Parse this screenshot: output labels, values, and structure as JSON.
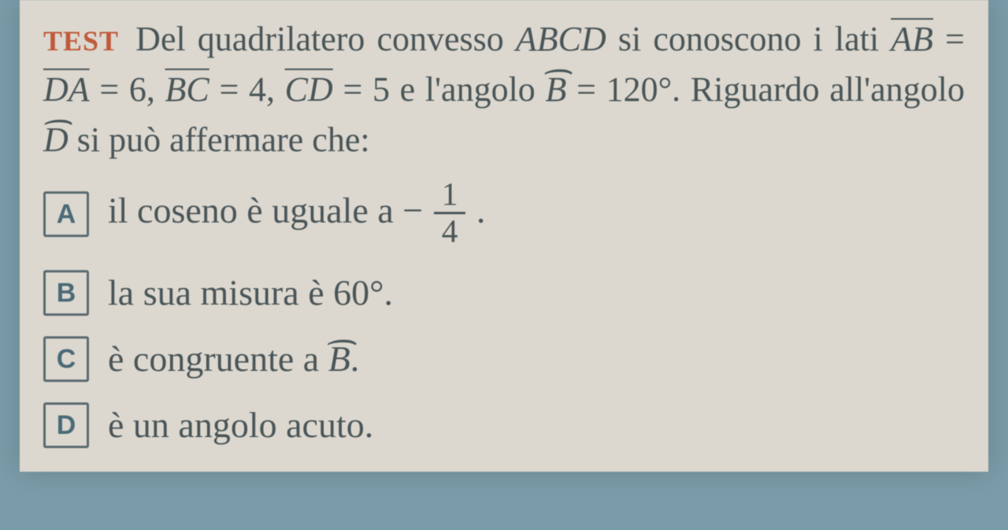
{
  "colors": {
    "page_bg": "#dcd8cf",
    "outer_bg": "#7a9ba8",
    "text": "#4a5558",
    "test_label": "#c05a3a",
    "box_border": "#5a6a70",
    "box_letter": "#4a6a78"
  },
  "question": {
    "label": "TEST",
    "pre": "Del quadrilatero convesso ",
    "abcd": "ABCD",
    "t0": " si cono­scono i lati ",
    "ab": "AB",
    "eq": " = ",
    "da": "DA",
    "eq6": " = 6, ",
    "bc": "BC",
    "eq4": " = 4, ",
    "cd": "CD",
    "eq5": " = 5 e l'angolo ",
    "bhat": "B",
    "eq120": " = 120°. Riguardo all'angolo ",
    "dhat": "D",
    "tail": " si può affermare che:"
  },
  "answers": {
    "a": {
      "letter": "A",
      "pre": "il coseno è uguale a ",
      "minus": "−",
      "num": "1",
      "den": "4",
      "post": " ."
    },
    "b": {
      "letter": "B",
      "text": "la sua misura è 60°."
    },
    "c": {
      "letter": "C",
      "pre": "è congruente a ",
      "bhat": "B",
      "post": "."
    },
    "d": {
      "letter": "D",
      "text": "è un angolo acuto."
    }
  }
}
